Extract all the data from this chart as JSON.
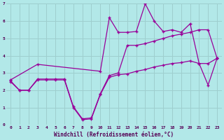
{
  "xlabel": "Windchill (Refroidissement éolien,°C)",
  "background_color": "#b2e8e8",
  "grid_color": "#9ecece",
  "line_color": "#990099",
  "xlim": [
    -0.5,
    23.5
  ],
  "ylim": [
    0,
    7
  ],
  "xticks": [
    0,
    1,
    2,
    3,
    4,
    5,
    6,
    7,
    8,
    9,
    10,
    11,
    12,
    13,
    14,
    15,
    16,
    17,
    18,
    19,
    20,
    21,
    22,
    23
  ],
  "yticks": [
    0,
    1,
    2,
    3,
    4,
    5,
    6,
    7
  ],
  "line1_x": [
    0,
    1,
    2,
    3,
    4,
    5,
    6,
    7,
    8,
    9,
    10,
    11,
    12,
    13,
    14,
    15,
    16,
    17,
    18,
    19,
    20,
    21,
    22,
    23
  ],
  "line1_y": [
    2.5,
    2.0,
    2.0,
    2.6,
    2.6,
    2.6,
    2.6,
    1.0,
    0.3,
    0.35,
    1.75,
    2.75,
    2.9,
    2.95,
    3.1,
    3.2,
    3.35,
    3.45,
    3.55,
    3.6,
    3.7,
    3.55,
    3.55,
    3.85
  ],
  "line2_x": [
    0,
    1,
    2,
    3,
    4,
    5,
    6,
    7,
    8,
    9,
    10,
    11,
    12,
    13,
    14,
    15,
    16,
    17,
    18,
    19,
    20,
    21,
    22,
    23
  ],
  "line2_y": [
    2.55,
    2.0,
    2.0,
    2.65,
    2.65,
    2.65,
    2.65,
    1.05,
    0.35,
    0.4,
    1.8,
    2.85,
    3.0,
    4.6,
    4.6,
    4.7,
    4.85,
    5.0,
    5.15,
    5.25,
    5.35,
    5.5,
    5.5,
    3.85
  ],
  "line3_x": [
    0,
    3,
    10,
    11,
    12,
    13,
    14,
    15,
    16,
    17,
    18,
    19,
    20,
    21,
    22,
    23
  ],
  "line3_y": [
    2.6,
    3.5,
    3.1,
    6.2,
    5.35,
    5.35,
    5.4,
    7.0,
    6.0,
    5.4,
    5.5,
    5.35,
    5.85,
    3.55,
    2.3,
    3.85
  ]
}
